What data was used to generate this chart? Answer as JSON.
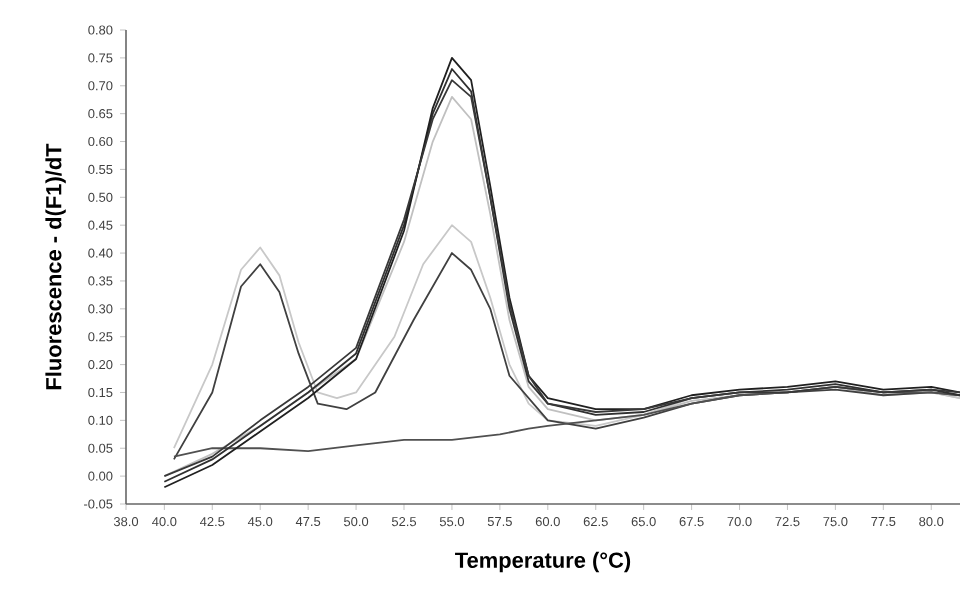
{
  "chart_data": {
    "type": "line",
    "xlabel": "Temperature (°C)",
    "ylabel": "Fluorescence - d(F1)/dT",
    "xlim": [
      38,
      81.5
    ],
    "ylim": [
      -0.05,
      0.8
    ],
    "xticks": [
      {
        "value": 38,
        "label": "38.0"
      },
      {
        "value": 40,
        "label": "40.0"
      },
      {
        "value": 42.5,
        "label": "42.5"
      },
      {
        "value": 45,
        "label": "45.0"
      },
      {
        "value": 47.5,
        "label": "47.5"
      },
      {
        "value": 50,
        "label": "50.0"
      },
      {
        "value": 52.5,
        "label": "52.5"
      },
      {
        "value": 55,
        "label": "55.0"
      },
      {
        "value": 57.5,
        "label": "57.5"
      },
      {
        "value": 60,
        "label": "60.0"
      },
      {
        "value": 62.5,
        "label": "62.5"
      },
      {
        "value": 65,
        "label": "65.0"
      },
      {
        "value": 67.5,
        "label": "67.5"
      },
      {
        "value": 70,
        "label": "70.0"
      },
      {
        "value": 72.5,
        "label": "72.5"
      },
      {
        "value": 75,
        "label": "75.0"
      },
      {
        "value": 77.5,
        "label": "77.5"
      },
      {
        "value": 80,
        "label": "80.0"
      }
    ],
    "yticks": [
      {
        "value": -0.05,
        "label": "-0.05"
      },
      {
        "value": 0,
        "label": "0.00"
      },
      {
        "value": 0.05,
        "label": "0.05"
      },
      {
        "value": 0.1,
        "label": "0.10"
      },
      {
        "value": 0.15,
        "label": "0.15"
      },
      {
        "value": 0.2,
        "label": "0.20"
      },
      {
        "value": 0.25,
        "label": "0.25"
      },
      {
        "value": 0.3,
        "label": "0.30"
      },
      {
        "value": 0.35,
        "label": "0.35"
      },
      {
        "value": 0.4,
        "label": "0.40"
      },
      {
        "value": 0.45,
        "label": "0.45"
      },
      {
        "value": 0.5,
        "label": "0.50"
      },
      {
        "value": 0.55,
        "label": "0.55"
      },
      {
        "value": 0.6,
        "label": "0.60"
      },
      {
        "value": 0.65,
        "label": "0.65"
      },
      {
        "value": 0.7,
        "label": "0.70"
      },
      {
        "value": 0.75,
        "label": "0.75"
      },
      {
        "value": 0.8,
        "label": "0.80"
      }
    ],
    "grid": false,
    "series": [
      {
        "color": "#c0c0c0",
        "x": [
          40.0,
          42.5,
          45,
          47.5,
          50,
          52.5,
          54,
          55,
          56,
          57,
          58,
          59,
          60,
          62.5,
          65,
          67.5,
          70,
          72.5,
          75,
          77.5,
          80,
          81.5
        ],
        "values": [
          0.0,
          0.04,
          0.09,
          0.15,
          0.21,
          0.42,
          0.6,
          0.68,
          0.64,
          0.47,
          0.28,
          0.16,
          0.12,
          0.1,
          0.11,
          0.135,
          0.145,
          0.15,
          0.16,
          0.145,
          0.15,
          0.14
        ]
      },
      {
        "color": "#c8c8c8",
        "x": [
          40.5,
          42.5,
          44,
          45,
          46,
          47,
          48,
          49,
          50,
          52,
          53.5,
          55,
          56,
          57,
          58,
          59,
          60,
          62.5,
          65,
          67.5,
          70,
          72.5,
          75,
          77.5,
          80,
          81.5
        ],
        "values": [
          0.05,
          0.2,
          0.37,
          0.41,
          0.36,
          0.24,
          0.15,
          0.14,
          0.15,
          0.25,
          0.38,
          0.45,
          0.42,
          0.32,
          0.2,
          0.13,
          0.1,
          0.09,
          0.11,
          0.14,
          0.15,
          0.15,
          0.16,
          0.15,
          0.15,
          0.14
        ]
      },
      {
        "color": "#404040",
        "x": [
          40.5,
          42.5,
          44,
          45,
          46,
          47,
          48,
          49.5,
          51,
          53,
          55,
          56,
          57,
          58,
          60,
          62.5,
          65,
          67.5,
          70,
          72.5,
          75,
          77.5,
          80,
          81.5
        ],
        "values": [
          0.03,
          0.15,
          0.34,
          0.38,
          0.33,
          0.22,
          0.13,
          0.12,
          0.15,
          0.28,
          0.4,
          0.37,
          0.3,
          0.18,
          0.1,
          0.085,
          0.105,
          0.13,
          0.145,
          0.15,
          0.155,
          0.145,
          0.15,
          0.145
        ]
      },
      {
        "color": "#505050",
        "x": [
          40.5,
          42.5,
          45,
          47.5,
          50,
          52.5,
          55,
          57.5,
          59,
          60,
          62.5,
          65,
          67.5,
          70,
          72.5,
          75,
          77.5,
          80,
          81.5
        ],
        "values": [
          0.035,
          0.05,
          0.05,
          0.045,
          0.055,
          0.065,
          0.065,
          0.075,
          0.085,
          0.09,
          0.1,
          0.11,
          0.13,
          0.145,
          0.15,
          0.16,
          0.15,
          0.15,
          0.145
        ]
      },
      {
        "color": "#303030",
        "x": [
          40.0,
          42.5,
          45,
          47.5,
          50,
          52.5,
          54,
          55,
          56,
          57,
          58,
          59,
          60,
          62.5,
          65,
          67.5,
          70,
          72.5,
          75,
          77.5,
          80,
          81.5
        ],
        "values": [
          -0.01,
          0.03,
          0.09,
          0.15,
          0.22,
          0.45,
          0.65,
          0.73,
          0.69,
          0.5,
          0.3,
          0.17,
          0.13,
          0.11,
          0.115,
          0.14,
          0.15,
          0.155,
          0.165,
          0.15,
          0.155,
          0.145
        ]
      },
      {
        "color": "#202020",
        "x": [
          40.0,
          42.5,
          45,
          47.5,
          50,
          52.5,
          54,
          55,
          56,
          57,
          58,
          59,
          60,
          62.5,
          65,
          67.5,
          70,
          72.5,
          75,
          77.5,
          80,
          81.5
        ],
        "values": [
          -0.02,
          0.02,
          0.08,
          0.14,
          0.21,
          0.44,
          0.66,
          0.75,
          0.71,
          0.52,
          0.32,
          0.18,
          0.14,
          0.12,
          0.12,
          0.145,
          0.155,
          0.16,
          0.17,
          0.155,
          0.16,
          0.15
        ]
      },
      {
        "color": "#383838",
        "x": [
          40.0,
          42.5,
          45,
          47.5,
          50,
          52.5,
          54,
          55,
          56,
          57,
          58,
          59,
          60,
          62.5,
          65,
          67.5,
          70,
          72.5,
          75,
          77.5,
          80,
          81.5
        ],
        "values": [
          0.0,
          0.035,
          0.1,
          0.16,
          0.23,
          0.46,
          0.64,
          0.71,
          0.68,
          0.5,
          0.31,
          0.18,
          0.13,
          0.115,
          0.12,
          0.14,
          0.15,
          0.15,
          0.16,
          0.15,
          0.155,
          0.15
        ]
      }
    ]
  }
}
